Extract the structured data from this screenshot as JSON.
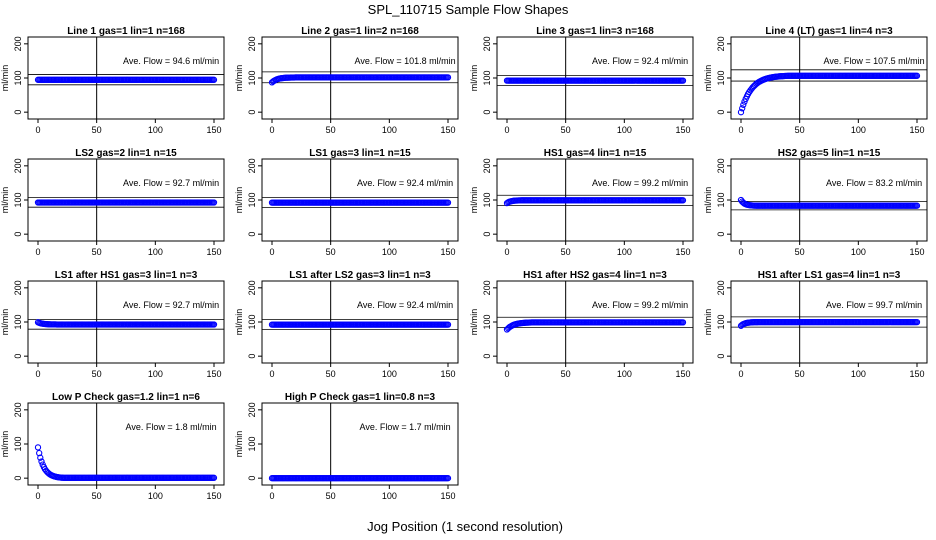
{
  "figure": {
    "title": "SPL_110715  Sample Flow Shapes",
    "xlabel": "Jog Position (1 second resolution)"
  },
  "colors": {
    "points": "#0000ff",
    "axis": "#000000",
    "background": "#ffffff"
  },
  "chart_data": [
    {
      "type": "scatter",
      "title": "Line 1 gas=1 lin=1 n=168",
      "annotation": "Ave. Flow = 94.6  ml/min",
      "ylabel": "ml/min",
      "xlim": [
        0,
        150
      ],
      "ylim": [
        -20,
        220
      ],
      "x_ticks": [
        0,
        50,
        100,
        150
      ],
      "y_ticks": [
        0,
        100,
        200
      ],
      "vline": 50,
      "hlines": [
        110,
        80
      ],
      "shape": "flat",
      "start": 98,
      "level": 94.6,
      "settle": 10
    },
    {
      "type": "scatter",
      "title": "Line 2 gas=1 lin=2 n=168",
      "annotation": "Ave. Flow = 101.8  ml/min",
      "ylabel": "ml/min",
      "xlim": [
        0,
        150
      ],
      "ylim": [
        -20,
        220
      ],
      "x_ticks": [
        0,
        50,
        100,
        150
      ],
      "y_ticks": [
        0,
        100,
        200
      ],
      "vline": 50,
      "hlines": [
        118,
        86
      ],
      "shape": "rise",
      "start": 87,
      "level": 101.8,
      "settle": 20
    },
    {
      "type": "scatter",
      "title": "Line 3 gas=1 lin=3 n=168",
      "annotation": "Ave. Flow = 92.4  ml/min",
      "ylabel": "ml/min",
      "xlim": [
        0,
        150
      ],
      "ylim": [
        -20,
        220
      ],
      "x_ticks": [
        0,
        50,
        100,
        150
      ],
      "y_ticks": [
        0,
        100,
        200
      ],
      "vline": 50,
      "hlines": [
        107,
        78
      ],
      "shape": "flat",
      "start": 92.4,
      "level": 92.4,
      "settle": 5
    },
    {
      "type": "scatter",
      "title": "Line 4 (LT) gas=1 lin=4 n=3",
      "annotation": "Ave. Flow = 107.5  ml/min",
      "ylabel": "ml/min",
      "xlim": [
        0,
        150
      ],
      "ylim": [
        -20,
        220
      ],
      "x_ticks": [
        0,
        50,
        100,
        150
      ],
      "y_ticks": [
        0,
        100,
        200
      ],
      "vline": 50,
      "hlines": [
        124,
        91
      ],
      "shape": "rise",
      "start": 0,
      "level": 107.5,
      "settle": 40
    },
    {
      "type": "scatter",
      "title": "LS2 gas=2 lin=1 n=15",
      "annotation": "Ave. Flow = 92.7  ml/min",
      "ylabel": "ml/min",
      "xlim": [
        0,
        150
      ],
      "ylim": [
        -20,
        220
      ],
      "x_ticks": [
        0,
        50,
        100,
        150
      ],
      "y_ticks": [
        0,
        100,
        200
      ],
      "vline": 50,
      "hlines": [
        107,
        79
      ],
      "shape": "flat",
      "start": 92.7,
      "level": 92.7,
      "settle": 5
    },
    {
      "type": "scatter",
      "title": "LS1 gas=3 lin=1 n=15",
      "annotation": "Ave. Flow = 92.4  ml/min",
      "ylabel": "ml/min",
      "xlim": [
        0,
        150
      ],
      "ylim": [
        -20,
        220
      ],
      "x_ticks": [
        0,
        50,
        100,
        150
      ],
      "y_ticks": [
        0,
        100,
        200
      ],
      "vline": 50,
      "hlines": [
        107,
        78
      ],
      "shape": "flat",
      "start": 92.4,
      "level": 92.4,
      "settle": 5
    },
    {
      "type": "scatter",
      "title": "HS1 gas=4 lin=1 n=15",
      "annotation": "Ave. Flow = 99.2  ml/min",
      "ylabel": "ml/min",
      "xlim": [
        0,
        150
      ],
      "ylim": [
        -20,
        220
      ],
      "x_ticks": [
        0,
        50,
        100,
        150
      ],
      "y_ticks": [
        0,
        100,
        200
      ],
      "vline": 50,
      "hlines": [
        114,
        84
      ],
      "shape": "rise",
      "start": 91,
      "level": 99.2,
      "settle": 15
    },
    {
      "type": "scatter",
      "title": "HS2 gas=5 lin=1 n=15",
      "annotation": "Ave. Flow = 83.2  ml/min",
      "ylabel": "ml/min",
      "xlim": [
        0,
        150
      ],
      "ylim": [
        -20,
        220
      ],
      "x_ticks": [
        0,
        50,
        100,
        150
      ],
      "y_ticks": [
        0,
        100,
        200
      ],
      "vline": 50,
      "hlines": [
        96,
        71
      ],
      "shape": "fall",
      "start": 100,
      "level": 83.2,
      "settle": 14
    },
    {
      "type": "scatter",
      "title": "LS1 after HS1 gas=3 lin=1 n=3",
      "annotation": "Ave. Flow = 92.7  ml/min",
      "ylabel": "ml/min",
      "xlim": [
        0,
        150
      ],
      "ylim": [
        -20,
        220
      ],
      "x_ticks": [
        0,
        50,
        100,
        150
      ],
      "y_ticks": [
        0,
        100,
        200
      ],
      "vline": 50,
      "hlines": [
        107,
        79
      ],
      "shape": "fall",
      "start": 99,
      "level": 92.7,
      "settle": 18
    },
    {
      "type": "scatter",
      "title": "LS1 after LS2 gas=3 lin=1 n=3",
      "annotation": "Ave. Flow = 92.4  ml/min",
      "ylabel": "ml/min",
      "xlim": [
        0,
        150
      ],
      "ylim": [
        -20,
        220
      ],
      "x_ticks": [
        0,
        50,
        100,
        150
      ],
      "y_ticks": [
        0,
        100,
        200
      ],
      "vline": 50,
      "hlines": [
        107,
        78
      ],
      "shape": "flat",
      "start": 92.4,
      "level": 92.4,
      "settle": 5
    },
    {
      "type": "scatter",
      "title": "HS1 after HS2 gas=4 lin=1 n=3",
      "annotation": "Ave. Flow = 99.2  ml/min",
      "ylabel": "ml/min",
      "xlim": [
        0,
        150
      ],
      "ylim": [
        -20,
        220
      ],
      "x_ticks": [
        0,
        50,
        100,
        150
      ],
      "y_ticks": [
        0,
        100,
        200
      ],
      "vline": 50,
      "hlines": [
        114,
        84
      ],
      "shape": "rise",
      "start": 78,
      "level": 99.2,
      "settle": 25
    },
    {
      "type": "scatter",
      "title": "HS1 after LS1 gas=4 lin=1 n=3",
      "annotation": "Ave. Flow = 99.7  ml/min",
      "ylabel": "ml/min",
      "xlim": [
        0,
        150
      ],
      "ylim": [
        -20,
        220
      ],
      "x_ticks": [
        0,
        50,
        100,
        150
      ],
      "y_ticks": [
        0,
        100,
        200
      ],
      "vline": 50,
      "hlines": [
        115,
        85
      ],
      "shape": "rise",
      "start": 89,
      "level": 99.7,
      "settle": 15
    },
    {
      "type": "scatter",
      "title": "Low P Check gas=1.2 lin=1 n=6",
      "annotation": "Ave. Flow = 1.8  ml/min",
      "ylabel": "ml/min",
      "xlim": [
        0,
        150
      ],
      "ylim": [
        -20,
        220
      ],
      "x_ticks": [
        0,
        50,
        100,
        150
      ],
      "y_ticks": [
        0,
        100,
        200
      ],
      "vline": 50,
      "hlines": [],
      "shape": "fall",
      "start": 90,
      "level": 0,
      "settle": 22
    },
    {
      "type": "scatter",
      "title": "High P Check gas=1 lin=0.8 n=3",
      "annotation": "Ave. Flow = 1.7  ml/min",
      "ylabel": "ml/min",
      "xlim": [
        0,
        150
      ],
      "ylim": [
        -20,
        220
      ],
      "x_ticks": [
        0,
        50,
        100,
        150
      ],
      "y_ticks": [
        0,
        100,
        200
      ],
      "vline": 50,
      "hlines": [],
      "shape": "flat",
      "start": 0,
      "level": 0,
      "settle": 5
    }
  ]
}
